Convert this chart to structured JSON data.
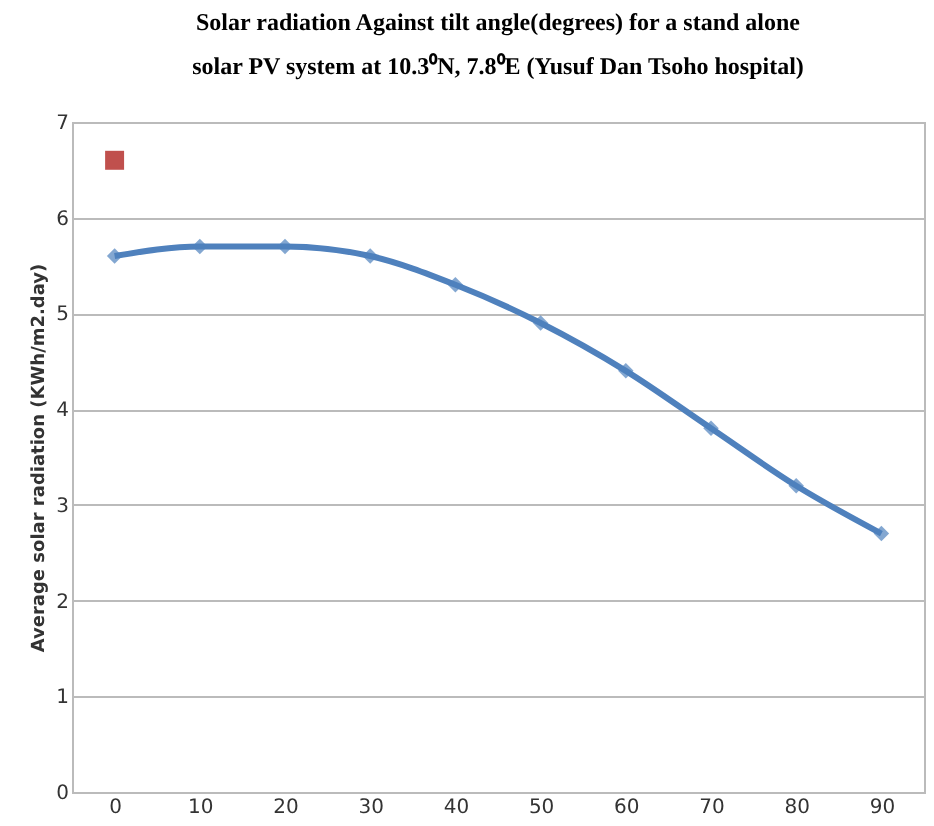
{
  "chart_data": {
    "type": "line",
    "title": "Solar radiation Against tilt angle(degrees) for a stand alone\nsolar PV system at 10.3⁰N, 7.8⁰E (Yusuf Dan Tsoho hospital)",
    "ylabel": "Average solar radiation (KWh/m2.day)",
    "categories": [
      "0",
      "10",
      "20",
      "30",
      "40",
      "50",
      "60",
      "70",
      "80",
      "90"
    ],
    "series": [
      {
        "color": "#4f81bd",
        "values": [
          5.6,
          5.7,
          5.7,
          5.6,
          5.3,
          4.9,
          4.4,
          3.8,
          3.2,
          2.7
        ],
        "marker": "diamond"
      },
      {
        "type": "scatter",
        "color": "#c0504d",
        "x": [
          "0"
        ],
        "values": [
          6.6
        ],
        "marker": "square"
      }
    ],
    "ylim": [
      0,
      7
    ],
    "yticks": [
      0,
      1,
      2,
      3,
      4,
      5,
      6,
      7
    ],
    "grid": "y"
  }
}
